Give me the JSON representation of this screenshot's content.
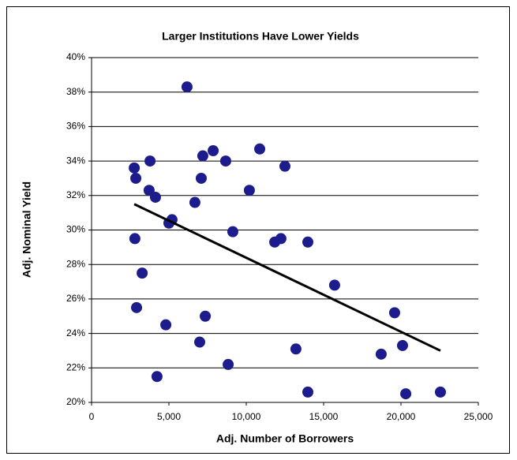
{
  "chart_data": {
    "type": "scatter",
    "title": "Larger Institutions Have Lower Yields",
    "x_label": "Adj. Number of Borrowers",
    "y_label": "Adj. Nominal Yield",
    "color": "#1c1c8c",
    "x": [
      2760,
      2860,
      2800,
      2910,
      3270,
      3720,
      3780,
      4130,
      4230,
      4800,
      5000,
      5200,
      6170,
      6680,
      6990,
      7090,
      7190,
      7350,
      7860,
      8670,
      8830,
      9130,
      10200,
      10870,
      11840,
      12240,
      12500,
      13210,
      13980,
      13980,
      15710,
      18720,
      19590,
      20100,
      20310,
      22550
    ],
    "values": [
      33.6,
      33.0,
      29.5,
      25.5,
      27.5,
      32.3,
      34.0,
      31.9,
      21.5,
      24.5,
      30.4,
      30.6,
      38.3,
      31.6,
      23.5,
      33.0,
      34.3,
      25.0,
      34.6,
      34.0,
      22.2,
      29.9,
      32.3,
      34.7,
      29.3,
      29.5,
      33.7,
      23.1,
      20.6,
      29.3,
      26.8,
      22.8,
      25.2,
      23.3,
      20.5,
      20.6
    ],
    "trendline": {
      "color": "#000000",
      "x": [
        2760,
        22550
      ],
      "values": [
        31.5,
        23.0
      ]
    },
    "xlim": [
      0,
      25000
    ],
    "xticks": [
      0,
      {
        "value": 5000,
        "label": "5,000"
      },
      {
        "value": 10000,
        "label": "10,000"
      },
      {
        "value": 15000,
        "label": "15,000"
      },
      {
        "value": 20000,
        "label": "20,000"
      },
      {
        "value": 25000,
        "label": "25,000"
      }
    ],
    "ylim": [
      20,
      40
    ],
    "yticks": [
      {
        "value": 20,
        "label": "20%"
      },
      {
        "value": 22,
        "label": "22%"
      },
      {
        "value": 24,
        "label": "24%"
      },
      {
        "value": 26,
        "label": "26%"
      },
      {
        "value": 28,
        "label": "28%"
      },
      {
        "value": 30,
        "label": "30%"
      },
      {
        "value": 32,
        "label": "32%"
      },
      {
        "value": 34,
        "label": "34%"
      },
      {
        "value": 36,
        "label": "36%"
      },
      {
        "value": 38,
        "label": "38%"
      },
      {
        "value": 40,
        "label": "40%"
      }
    ],
    "grid": true
  }
}
